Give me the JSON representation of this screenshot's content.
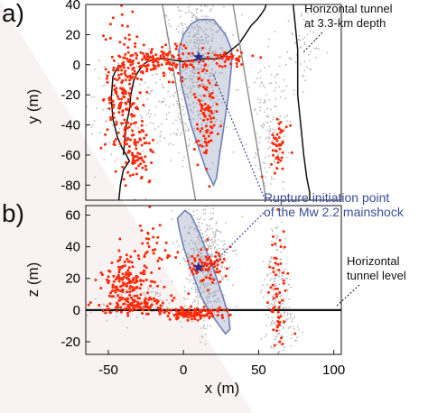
{
  "chart_data": [
    {
      "panel": "a",
      "type": "scatter",
      "view": "map",
      "panel_label": "a)",
      "xlabel": "",
      "ylabel": "y (m)",
      "xlim": [
        -65,
        105
      ],
      "ylim": [
        -90,
        40
      ],
      "xticks": [],
      "yticks": [
        -80,
        -60,
        -40,
        -20,
        0,
        20,
        40
      ],
      "grid": false,
      "annotations": [
        {
          "name": "tunnel-note",
          "lines": [
            "Horizontal tunnel",
            "at 3.3-km depth"
          ]
        }
      ],
      "series": [
        {
          "role": "background",
          "color": "#b8b8b8",
          "clusters": [
            {
              "cx": 10,
              "cy": 10,
              "sx": 9,
              "sy": 30,
              "n": 520
            },
            {
              "cx": -20,
              "cy": -30,
              "sx": 25,
              "sy": 18,
              "n": 220
            },
            {
              "cx": 58,
              "cy": -40,
              "sx": 7,
              "sy": 22,
              "n": 150
            },
            {
              "cx": 80,
              "cy": 10,
              "sx": 6,
              "sy": 15,
              "n": 60
            }
          ]
        },
        {
          "role": "aftershocks",
          "color": "#ff2a0a",
          "clusters": [
            {
              "cx": -15,
              "cy": 2,
              "sx": 14,
              "sy": 5,
              "n": 150
            },
            {
              "cx": -40,
              "cy": -18,
              "sx": 6,
              "sy": 22,
              "n": 180
            },
            {
              "cx": -30,
              "cy": -60,
              "sx": 5,
              "sy": 10,
              "n": 80
            },
            {
              "cx": 15,
              "cy": -35,
              "sx": 4,
              "sy": 15,
              "n": 90
            },
            {
              "cx": 64,
              "cy": -52,
              "sx": 3,
              "sy": 8,
              "n": 45
            },
            {
              "cx": 30,
              "cy": 4,
              "sx": 7,
              "sy": 2,
              "n": 40
            }
          ]
        },
        {
          "role": "mainshock",
          "color": "#2e2f8c",
          "x": [
            10
          ],
          "y": [
            5
          ]
        }
      ],
      "lines": [
        {
          "name": "tunnel-curve",
          "color": "#111111",
          "x": [
            -40,
            -38,
            -36,
            -35,
            -34,
            -33,
            -31,
            -29,
            -27,
            -24,
            -21,
            -17,
            -12,
            -6,
            0,
            6,
            12,
            17,
            22,
            27,
            32,
            37,
            41,
            45,
            49,
            52,
            54,
            55
          ],
          "y": [
            -60,
            -40,
            -30,
            -20,
            -15,
            -10,
            -6,
            -3,
            0,
            2,
            3,
            4,
            4,
            3,
            2,
            3,
            4,
            4,
            4,
            6,
            10,
            14,
            20,
            26,
            30,
            34,
            37,
            40
          ]
        },
        {
          "name": "tunnel-lower-outline",
          "color": "#111111",
          "x": [
            -43,
            -42,
            -40,
            -36,
            -38,
            -41,
            -44,
            -47,
            -48,
            -47,
            -43
          ],
          "y": [
            -90,
            -80,
            -70,
            -64,
            -60,
            -55,
            -48,
            -36,
            -22,
            -8,
            0
          ]
        },
        {
          "name": "tunnel-right-boundary",
          "color": "#111111",
          "x": [
            73,
            76,
            76,
            78,
            80,
            82,
            84,
            84
          ],
          "y": [
            40,
            10,
            -20,
            -40,
            -60,
            -75,
            -85,
            -90
          ]
        },
        {
          "name": "guide-line-left",
          "color": "#8c8c8c",
          "x": [
            -14,
            8
          ],
          "y": [
            40,
            -90
          ]
        },
        {
          "name": "guide-line-right",
          "color": "#8c8c8c",
          "x": [
            33,
            55
          ],
          "y": [
            40,
            -90
          ]
        },
        {
          "name": "rupture-outline",
          "color": "#6f7fb8",
          "x": [
            10,
            20,
            28,
            32,
            32,
            30,
            27,
            24,
            22,
            20,
            15,
            5,
            -2,
            -3,
            0,
            5,
            10
          ],
          "y": [
            30,
            30,
            20,
            10,
            0,
            -20,
            -40,
            -60,
            -75,
            -80,
            -70,
            -40,
            -10,
            10,
            20,
            27,
            30
          ]
        }
      ]
    },
    {
      "panel": "b",
      "type": "scatter",
      "view": "section",
      "panel_label": "b)",
      "xlabel": "x (m)",
      "ylabel": "z (m)",
      "xlim": [
        -65,
        105
      ],
      "ylim": [
        -28,
        66
      ],
      "xticks": [
        -50,
        0,
        50,
        100
      ],
      "yticks": [
        -20,
        0,
        20,
        40,
        60
      ],
      "grid": false,
      "annotations": [
        {
          "name": "rupture-note",
          "lines": [
            "Rupture initiation point",
            "of the Mw 2.2 mainshock"
          ]
        },
        {
          "name": "tunnel-level-note",
          "lines": [
            "Horizontal",
            "tunnel level"
          ]
        }
      ],
      "series": [
        {
          "role": "background",
          "color": "#b8b8b8",
          "clusters": [
            {
              "cx": 14,
              "cy": 28,
              "sx": 8,
              "sy": 22,
              "n": 450
            },
            {
              "cx": -30,
              "cy": 5,
              "sx": 15,
              "sy": 5,
              "n": 120
            },
            {
              "cx": 62,
              "cy": 10,
              "sx": 4,
              "sy": 22,
              "n": 180
            },
            {
              "cx": 70,
              "cy": -10,
              "sx": 4,
              "sy": 8,
              "n": 50
            }
          ]
        },
        {
          "role": "aftershocks",
          "color": "#ff2a0a",
          "clusters": [
            {
              "cx": -38,
              "cy": 18,
              "sx": 8,
              "sy": 8,
              "n": 170
            },
            {
              "cx": -30,
              "cy": 3,
              "sx": 10,
              "sy": 3,
              "n": 90
            },
            {
              "cx": 5,
              "cy": -2,
              "sx": 10,
              "sy": 2,
              "n": 130
            },
            {
              "cx": 15,
              "cy": 28,
              "sx": 7,
              "sy": 6,
              "n": 80
            },
            {
              "cx": 63,
              "cy": 12,
              "sx": 3,
              "sy": 20,
              "n": 60
            },
            {
              "cx": -20,
              "cy": 40,
              "sx": 8,
              "sy": 10,
              "n": 35
            }
          ]
        },
        {
          "role": "mainshock",
          "color": "#2e2f8c",
          "x": [
            10
          ],
          "y": [
            27
          ]
        }
      ],
      "lines": [
        {
          "name": "tunnel-level-line",
          "color": "#111111",
          "x": [
            -75,
            105
          ],
          "y": [
            0,
            0
          ]
        },
        {
          "name": "rupture-outline",
          "color": "#6f7fb8",
          "x": [
            -4,
            1,
            5,
            10,
            15,
            20,
            25,
            30,
            31,
            28,
            24,
            18,
            12,
            8,
            4,
            0,
            -3,
            -4
          ],
          "y": [
            58,
            63,
            60,
            50,
            38,
            26,
            12,
            -3,
            -12,
            -15,
            -10,
            -2,
            8,
            18,
            28,
            40,
            52,
            58
          ]
        }
      ]
    }
  ]
}
